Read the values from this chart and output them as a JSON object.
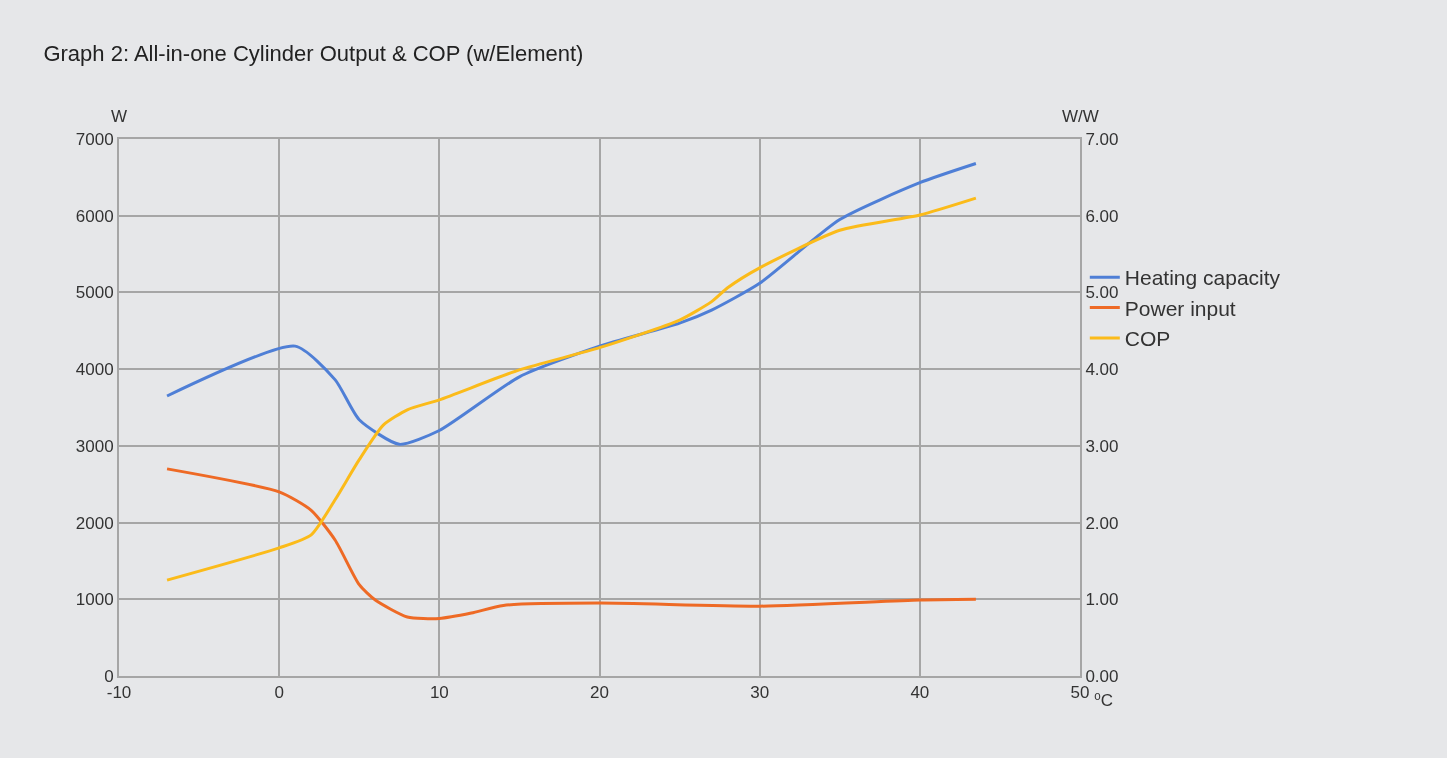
{
  "chart_data": {
    "type": "line",
    "title": "Graph 2: All-in-one Cylinder Output & COP (w/Element)",
    "xlabel": "⁰C",
    "ylabel": "W",
    "y2label": "W/W",
    "xlim": [
      -10,
      50
    ],
    "xticks": [
      -10,
      0,
      10,
      20,
      30,
      40,
      50
    ],
    "ylim": [
      0,
      7000
    ],
    "yticks": [
      0,
      1000,
      2000,
      3000,
      4000,
      5000,
      6000,
      7000
    ],
    "y2lim": [
      0,
      7
    ],
    "y2ticks": [
      {
        "value": 0,
        "label": "0.00"
      },
      {
        "value": 1,
        "label": "1.00"
      },
      {
        "value": 2,
        "label": "2.00"
      },
      {
        "value": 3,
        "label": "3.00"
      },
      {
        "value": 4,
        "label": "4.00"
      },
      {
        "value": 5,
        "label": "5.00"
      },
      {
        "value": 6,
        "label": "6.00"
      },
      {
        "value": 7,
        "label": "7.00"
      }
    ],
    "grid": true,
    "legend": "right",
    "marker": "none",
    "line_style": "solid",
    "series": [
      {
        "name": "Heating capacity",
        "color": "#4f7fd6",
        "x": [
          -7,
          1,
          3.5,
          5,
          7.5,
          10,
          15,
          20,
          25,
          27,
          30,
          35,
          40,
          43.5
        ],
        "values": [
          3650,
          4300,
          3860,
          3340,
          3020,
          3200,
          3900,
          4300,
          4600,
          4770,
          5120,
          5950,
          6430,
          6680
        ]
      },
      {
        "name": "Power input",
        "color": "#ee6a25",
        "x": [
          -7,
          0,
          2,
          3.5,
          5,
          6,
          8,
          10,
          12,
          14,
          20,
          30,
          40,
          43.5
        ],
        "values": [
          2700,
          2400,
          2160,
          1770,
          1190,
          990,
          770,
          750,
          820,
          920,
          950,
          910,
          990,
          1000
        ]
      },
      {
        "name": "COP",
        "color": "#fbbb1a",
        "axis": "y2",
        "x": [
          -7,
          0,
          2,
          3.5,
          5,
          6.5,
          8,
          10,
          15,
          20,
          25,
          27,
          28,
          30,
          35,
          40,
          43.5
        ],
        "values": [
          1.25,
          1.67,
          1.84,
          2.3,
          2.82,
          3.27,
          3.47,
          3.6,
          3.99,
          4.28,
          4.64,
          4.88,
          5.06,
          5.32,
          5.81,
          6.01,
          6.23
        ]
      }
    ]
  }
}
